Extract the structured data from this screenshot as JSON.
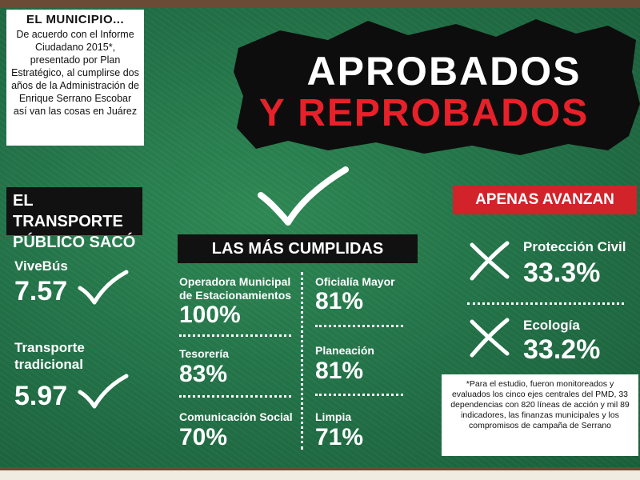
{
  "intro": {
    "title": "EL MUNICIPIO...",
    "text": "De acuerdo con el Informe Ciudadano 2015*, presentado por Plan Estratégico, al cumplirse dos años de la Administración de Enrique Serrano Escobar así van las cosas en Juárez"
  },
  "header": {
    "line1": "APROBADOS",
    "line2": "Y REPROBADOS"
  },
  "transport": {
    "title": "EL TRANSPORTE PÚBLICO SACÓ",
    "items": [
      {
        "label": "ViveBús",
        "value": "7.57"
      },
      {
        "label": "Transporte tradicional",
        "value": "5.97"
      }
    ]
  },
  "cumplidas": {
    "title": "LAS MÁS CUMPLIDAS",
    "left": [
      {
        "label": "Operadora Municipal de Estacionamientos",
        "value": "100%"
      },
      {
        "label": "Tesorería",
        "value": "83%"
      },
      {
        "label": "Comunicación Social",
        "value": "70%"
      }
    ],
    "right": [
      {
        "label": "Oficialía Mayor",
        "value": "81%"
      },
      {
        "label": "Planeación",
        "value": "81%"
      },
      {
        "label": "Limpia",
        "value": "71%"
      }
    ]
  },
  "apenas": {
    "title": "APENAS AVANZAN",
    "items": [
      {
        "label": "Protección Civil",
        "value": "33.3%"
      },
      {
        "label": "Ecología",
        "value": "33.2%"
      }
    ]
  },
  "footnote": "*Para el estudio, fueron monitoreados y evaluados los cinco ejes centrales del PMD, 33 dependencias con 820 líneas de acción y mil 89 indicadores, las finanzas municipales y los compromisos de campaña de Serrano",
  "colors": {
    "board": "#24754a",
    "accent_red": "#d2222a",
    "frame": "#6b4b35"
  },
  "icons": [
    "check-icon",
    "cross-icon"
  ]
}
